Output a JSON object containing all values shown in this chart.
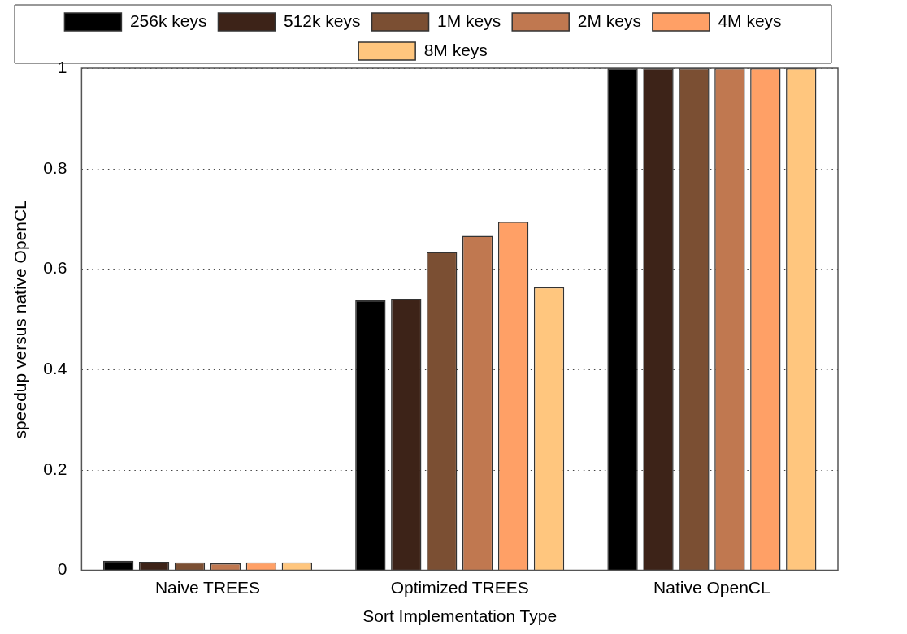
{
  "chart_data": {
    "type": "bar",
    "xlabel": "Sort Implementation Type",
    "ylabel": "speedup versus native OpenCL",
    "categories": [
      "Naive TREES",
      "Optimized TREES",
      "Native OpenCL"
    ],
    "series": [
      {
        "name": "256k keys",
        "color": "#000000",
        "values": [
          0.019,
          0.538,
          1
        ]
      },
      {
        "name": "512k keys",
        "color": "#3d2318",
        "values": [
          0.017,
          0.541,
          1
        ]
      },
      {
        "name": "1M keys",
        "color": "#7b4f33",
        "values": [
          0.016,
          0.634,
          1
        ]
      },
      {
        "name": "2M keys",
        "color": "#c07850",
        "values": [
          0.014,
          0.666,
          1
        ]
      },
      {
        "name": "4M keys",
        "color": "#ffa066",
        "values": [
          0.016,
          0.694,
          1
        ]
      },
      {
        "name": "8M keys",
        "color": "#ffc67e",
        "values": [
          0.016,
          0.564,
          1
        ]
      }
    ],
    "ylim": [
      0,
      1
    ],
    "yticks": [
      0,
      0.2,
      0.4,
      0.6,
      0.8,
      1
    ],
    "grid": "y",
    "legend": "top"
  }
}
